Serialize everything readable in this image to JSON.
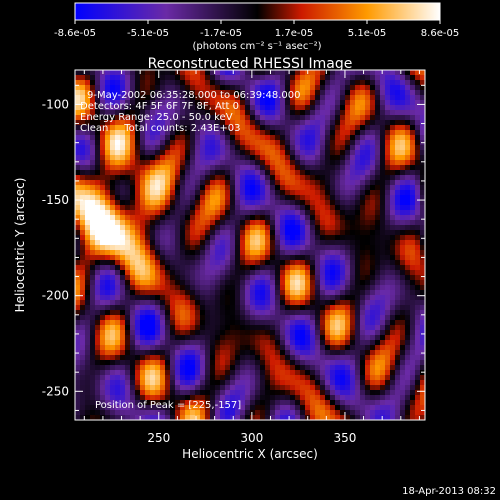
{
  "chart_data": {
    "type": "heatmap",
    "title": "Reconstructed RHESSI Image",
    "xlabel": "Heliocentric X (arcsec)",
    "ylabel": "Heliocentric Y (arcsec)",
    "xlim": [
      205,
      393
    ],
    "ylim": [
      -265,
      -82
    ],
    "x_ticks": [
      250,
      300,
      350
    ],
    "y_ticks": [
      -100,
      -150,
      -200,
      -250
    ],
    "colorbar": {
      "min": -8.6e-05,
      "max": 8.6e-05,
      "tick_labels": [
        "-8.6e-05",
        "-5.1e-05",
        "-1.7e-05",
        "1.7e-05",
        "5.1e-05",
        "8.6e-05"
      ],
      "unit_label": "(photons cm⁻² s⁻¹ asec⁻²)"
    },
    "annotations": [
      "9-May-2002 06:35:28.000 to 06:39:48.000",
      "Detectors: 4F 5F 6F 7F 8F, Att 0",
      "Energy Range: 25.0 - 50.0 keV",
      "Clean     Total counts: 2.43E+03"
    ],
    "peak_label": "Position of Peak = [225,-157]",
    "peak": [
      225,
      -157
    ],
    "grid": false,
    "legend": "none"
  },
  "footer": {
    "timestamp": "18-Apr-2013 08:32"
  },
  "colors": {
    "background": "#000000",
    "text": "#ffffff"
  }
}
